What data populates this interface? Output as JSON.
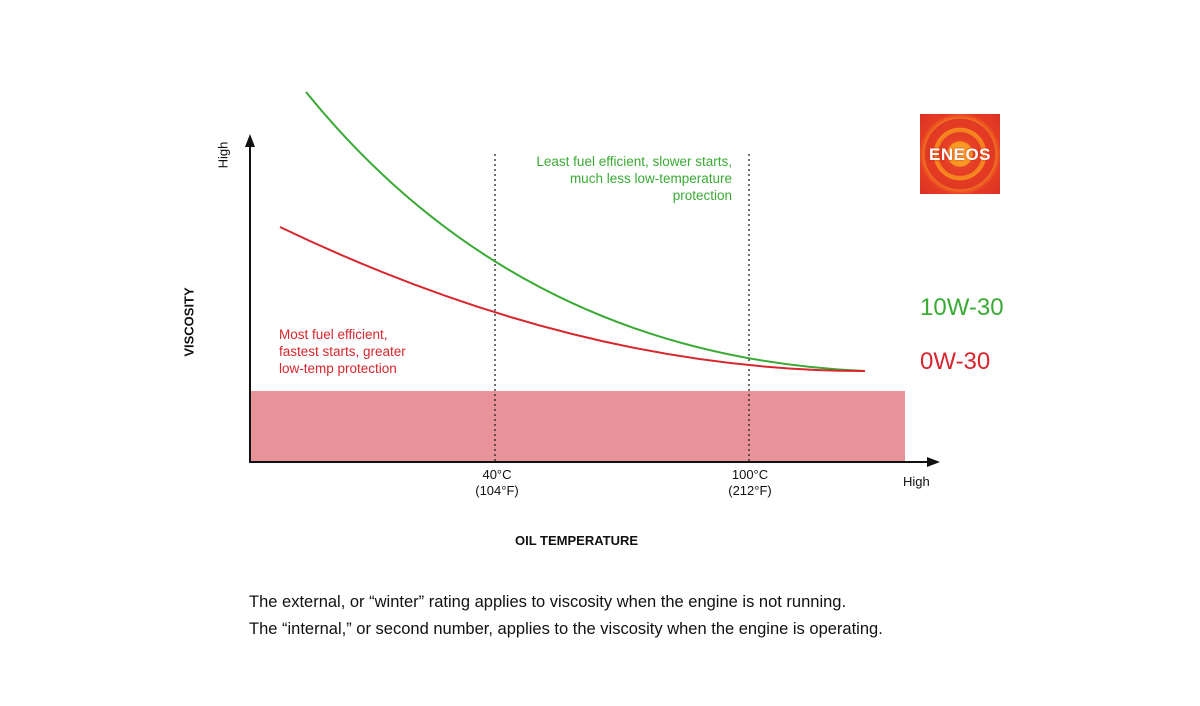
{
  "chart_data": {
    "type": "line",
    "xlabel": "OIL TEMPERATURE",
    "ylabel": "VISCOSITY",
    "x_high_label": "High",
    "y_high_label": "High",
    "ticks": [
      {
        "value": 40,
        "line1": "40°C",
        "line2": "(104°F)"
      },
      {
        "value": 100,
        "line1": "100°C",
        "line2": "(212°F)"
      }
    ],
    "series": [
      {
        "name": "10W-30",
        "color": "#3aaa35"
      },
      {
        "name": "0W-30",
        "color": "#d7262d"
      }
    ],
    "annotations": {
      "green": "Least fuel efficient,  slower starts, much less low-temperature protection",
      "red_lines": [
        "Most fuel efficient,",
        "fastest starts, greater",
        "low-temp protection"
      ]
    },
    "band_color": "#e8939a"
  },
  "logo": {
    "text": "ENEOS"
  },
  "footer": {
    "line1": "The external, or “winter” rating applies to viscosity when the engine is not running.",
    "line2": "The “internal,” or second number, applies to the viscosity when the engine is operating."
  }
}
